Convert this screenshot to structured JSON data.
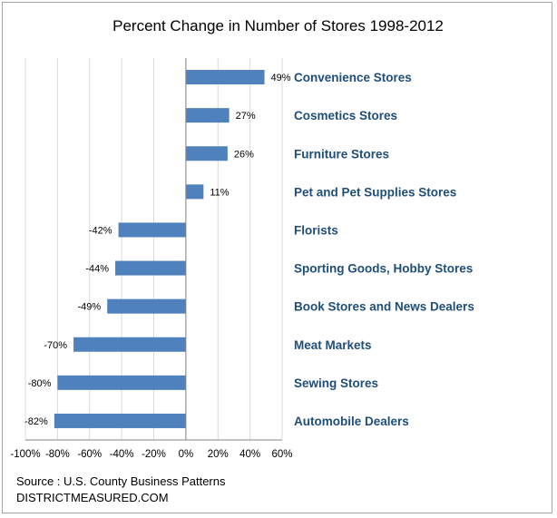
{
  "chart_data": {
    "type": "bar",
    "orientation": "horizontal",
    "title": "Percent Change in Number of Stores 1998-2012",
    "categories": [
      "Convenience Stores",
      "Cosmetics Stores",
      "Furniture Stores",
      "Pet and Pet Supplies Stores",
      "Florists",
      "Sporting Goods, Hobby Stores",
      "Book Stores and News Dealers",
      "Meat Markets",
      "Sewing Stores",
      "Automobile Dealers"
    ],
    "values": [
      49,
      27,
      26,
      11,
      -42,
      -44,
      -49,
      -70,
      -80,
      -82
    ],
    "value_labels": [
      "49%",
      "27%",
      "26%",
      "11%",
      "-42%",
      "-44%",
      "-49%",
      "-70%",
      "-80%",
      "-82%"
    ],
    "xlim": [
      -100,
      60
    ],
    "xticks": [
      -100,
      -80,
      -60,
      -40,
      -20,
      0,
      20,
      40,
      60
    ],
    "xtick_labels": [
      "-100%",
      "-80%",
      "-60%",
      "-40%",
      "-20%",
      "0%",
      "20%",
      "40%",
      "60%"
    ],
    "grid": true,
    "bar_color": "#4f81bd",
    "label_color": "#1f4e79"
  },
  "footer": {
    "source": "Source : U.S. County Business Patterns",
    "site": "DISTRICTMEASURED.COM"
  }
}
